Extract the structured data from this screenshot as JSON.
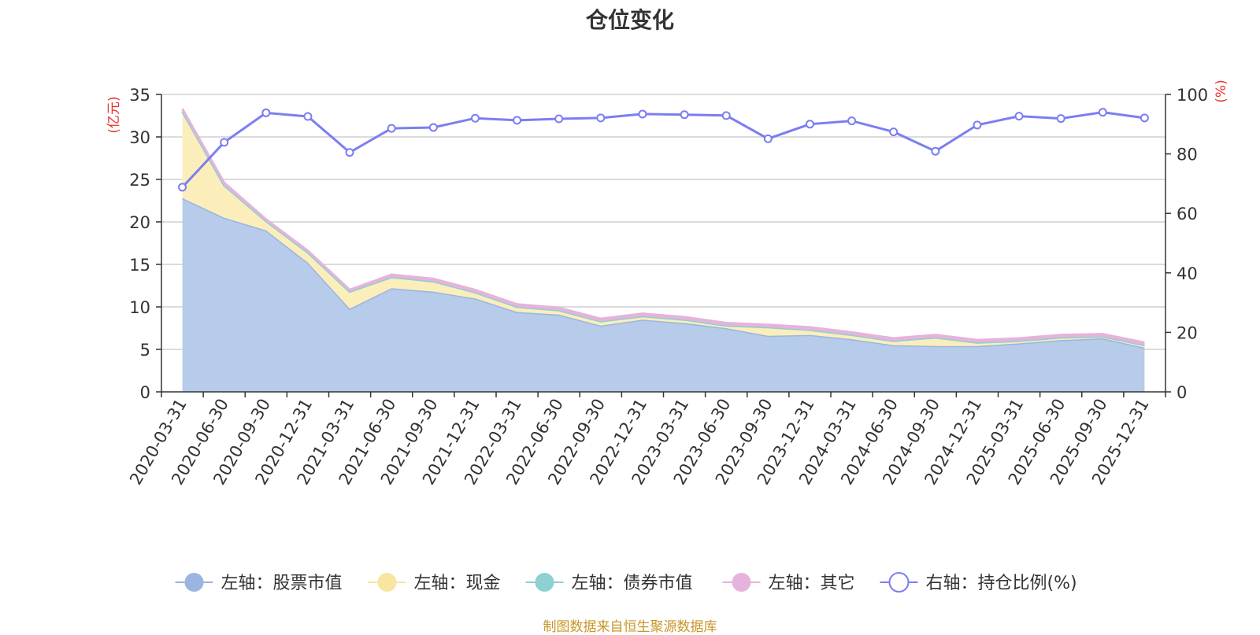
{
  "title": "仓位变化",
  "source": "制图数据来自恒生聚源数据库",
  "chart_data": {
    "type": "area",
    "categories": [
      "2020-03-31",
      "2020-06-30",
      "2020-09-30",
      "2020-12-31",
      "2021-03-31",
      "2021-06-30",
      "2021-09-30",
      "2021-12-31",
      "2022-03-31",
      "2022-06-30",
      "2022-09-30",
      "2022-12-31",
      "2023-03-31",
      "2023-06-30",
      "2023-09-30",
      "2023-12-31",
      "2024-03-31",
      "2024-06-30",
      "2024-09-30",
      "2024-12-31",
      "2025-03-31",
      "2025-06-30",
      "2025-09-30",
      "2025-12-31"
    ],
    "left_axis": {
      "unit": "(亿元)",
      "ylim": [
        0,
        35
      ],
      "ticks": [
        0,
        5,
        10,
        15,
        20,
        25,
        30,
        35
      ]
    },
    "right_axis": {
      "unit": "(%)",
      "ylim": [
        0,
        100
      ],
      "ticks": [
        0,
        20,
        40,
        60,
        80,
        100
      ]
    },
    "series": [
      {
        "name": "左轴：股票市值",
        "axis": "left",
        "color": "#9ab5e0",
        "fill": "#b7cbea",
        "values": [
          22.8,
          20.5,
          19.0,
          15.2,
          9.8,
          12.2,
          11.8,
          11.0,
          9.4,
          9.1,
          7.8,
          8.5,
          8.1,
          7.5,
          6.6,
          6.7,
          6.2,
          5.5,
          5.4,
          5.4,
          5.7,
          6.1,
          6.3,
          5.2
        ]
      },
      {
        "name": "左轴：现金",
        "axis": "left",
        "color": "#f8e5a0",
        "fill": "#fbeebb",
        "values": [
          10.2,
          3.8,
          1.1,
          1.2,
          2.0,
          1.3,
          1.2,
          0.7,
          0.6,
          0.5,
          0.5,
          0.4,
          0.4,
          0.3,
          1.0,
          0.6,
          0.5,
          0.5,
          1.0,
          0.4,
          0.3,
          0.3,
          0.2,
          0.3
        ]
      },
      {
        "name": "左轴：债券市值",
        "axis": "left",
        "color": "#8dd1d2",
        "fill": "#8dd1d2",
        "values": [
          0,
          0,
          0,
          0,
          0,
          0,
          0,
          0,
          0,
          0,
          0,
          0,
          0,
          0,
          0,
          0,
          0,
          0,
          0,
          0,
          0,
          0,
          0,
          0
        ]
      },
      {
        "name": "左轴：其它",
        "axis": "left",
        "color": "#e6b3dc",
        "fill": "#e6b3dc",
        "values": [
          0.3,
          0.3,
          0.2,
          0.2,
          0.2,
          0.3,
          0.3,
          0.3,
          0.3,
          0.3,
          0.3,
          0.3,
          0.3,
          0.3,
          0.3,
          0.3,
          0.3,
          0.3,
          0.3,
          0.3,
          0.3,
          0.3,
          0.3,
          0.3
        ]
      },
      {
        "name": "右轴：持仓比例(%)",
        "axis": "right",
        "color": "#7b7ef0",
        "type": "line",
        "values": [
          68.8,
          83.9,
          93.8,
          92.6,
          80.5,
          88.6,
          88.9,
          92.0,
          91.3,
          91.8,
          92.1,
          93.4,
          93.2,
          92.9,
          85.1,
          90.0,
          91.1,
          87.4,
          80.9,
          89.7,
          92.7,
          91.9,
          94.0,
          92.1
        ]
      }
    ]
  }
}
